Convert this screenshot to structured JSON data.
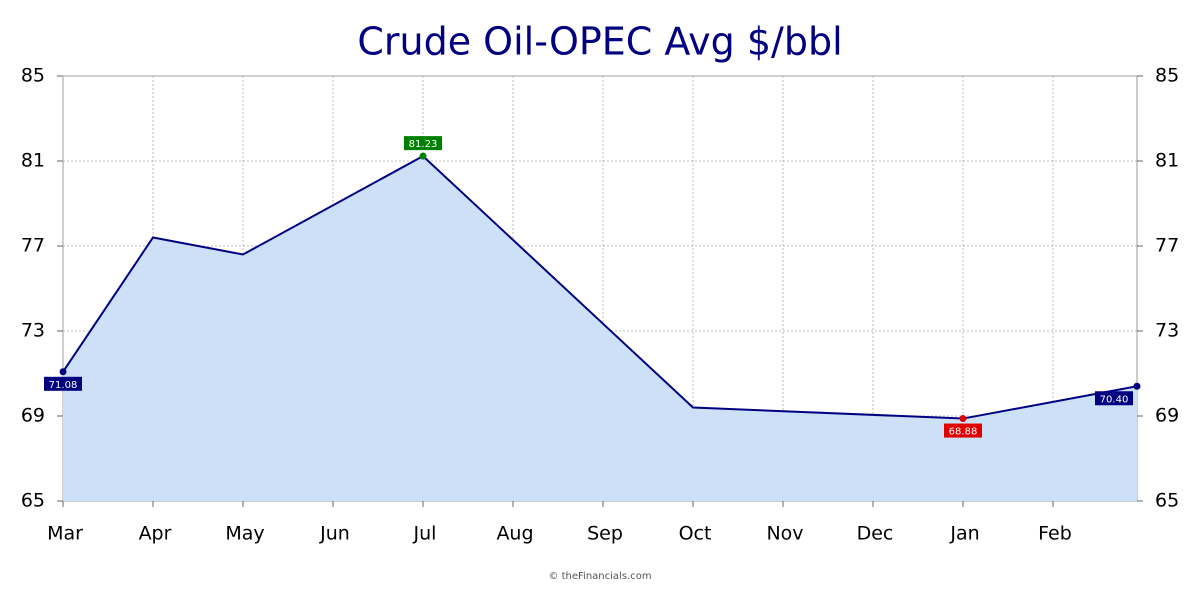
{
  "chart_data": {
    "type": "area",
    "title": "Crude Oil-OPEC Avg $/bbl",
    "footer": "© theFinancials.com",
    "xticks": [
      "Mar",
      "Apr",
      "May",
      "Jun",
      "Jul",
      "Aug",
      "Sep",
      "Oct",
      "Nov",
      "Dec",
      "Jan",
      "Feb"
    ],
    "x": [
      "Mar",
      "Apr",
      "May",
      "Jul",
      "Oct",
      "Jan",
      null
    ],
    "values": [
      71.08,
      77.4,
      76.6,
      81.23,
      69.4,
      68.88,
      70.4
    ],
    "value_labels": [
      "71.08",
      null,
      null,
      "81.23",
      null,
      "68.88",
      "70.40"
    ],
    "label_colors": [
      "#000080",
      null,
      null,
      "#008000",
      null,
      "#e00000",
      "#000080"
    ],
    "color": "#000080",
    "fill": "#cce0f7",
    "ylim": [
      65,
      85
    ],
    "yticks": [
      65,
      69,
      73,
      77,
      81,
      85
    ],
    "y2lim": [
      65,
      85
    ],
    "y2ticks": [
      65,
      69,
      73,
      77,
      81,
      85
    ],
    "grid": true
  }
}
